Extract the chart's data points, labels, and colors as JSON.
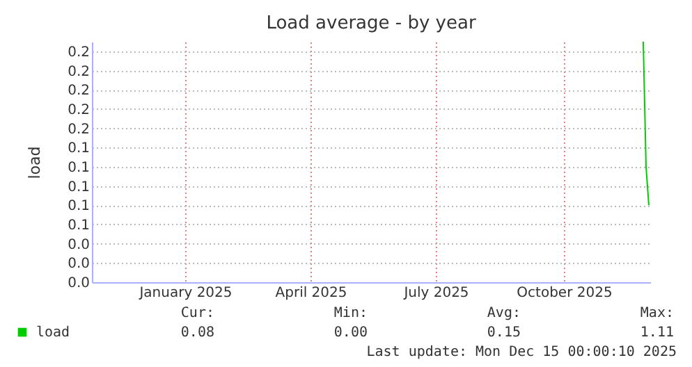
{
  "chart_data": {
    "type": "line",
    "title": "Load average - by year",
    "ylabel": "load",
    "x": [
      "2025-12-10",
      "2025-12-12",
      "2025-12-14"
    ],
    "series": [
      {
        "name": "load",
        "color": "#00cc00",
        "values": [
          0.25,
          0.12,
          0.08
        ]
      }
    ],
    "xlim": [
      "2024-11-09",
      "2025-12-15"
    ],
    "xticks": [
      {
        "value": "2025-01-15",
        "label": "January 2025"
      },
      {
        "value": "2025-04-15",
        "label": "April 2025"
      },
      {
        "value": "2025-07-14",
        "label": "July 2025"
      },
      {
        "value": "2025-10-14",
        "label": "October 2025"
      }
    ],
    "ylim": [
      0,
      0.25
    ],
    "yticks": [
      {
        "value": 0,
        "label": "0.0"
      },
      {
        "value": 0.02,
        "label": "0.0"
      },
      {
        "value": 0.04,
        "label": "0.0"
      },
      {
        "value": 0.06,
        "label": "0.1"
      },
      {
        "value": 0.08,
        "label": "0.1"
      },
      {
        "value": 0.1,
        "label": "0.1"
      },
      {
        "value": 0.12,
        "label": "0.1"
      },
      {
        "value": 0.14,
        "label": "0.1"
      },
      {
        "value": 0.16,
        "label": "0.2"
      },
      {
        "value": 0.18,
        "label": "0.2"
      },
      {
        "value": 0.2,
        "label": "0.2"
      },
      {
        "value": 0.22,
        "label": "0.2"
      },
      {
        "value": 0.24,
        "label": "0.2"
      }
    ],
    "grid": true,
    "legend": "bottom left",
    "marker": "none",
    "line_style": "solid",
    "annotations": [
      "Cur:",
      "Min:",
      "Avg:",
      "Max:",
      "0.08",
      "0.00",
      "0.15",
      "1.11",
      "Last update: Mon Dec 15 00:00:10 2025"
    ]
  }
}
